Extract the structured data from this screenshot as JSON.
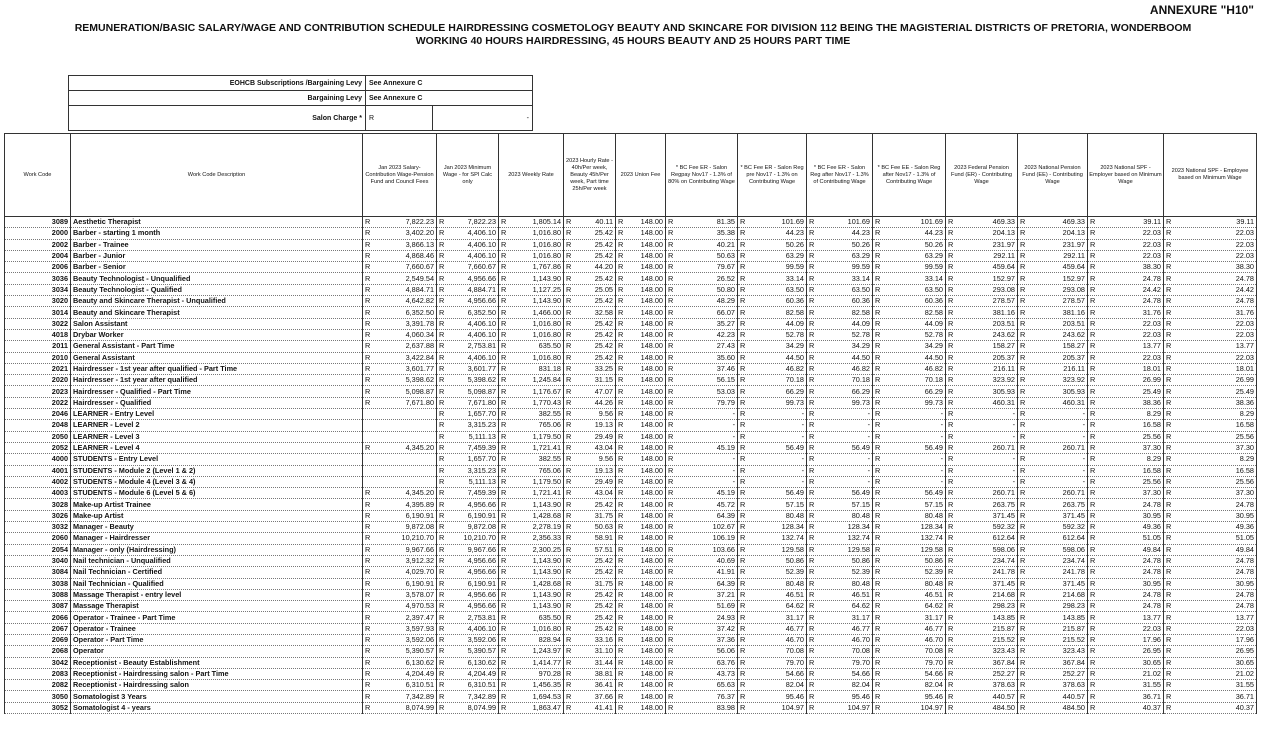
{
  "annexure": "ANNEXURE \"H10\"",
  "title": [
    "REMUNERATION/BASIC SALARY/WAGE AND CONTRIBUTION SCHEDULE HAIRDRESSING COSMETOLOGY BEAUTY AND SKINCARE FOR DIVISION 112 BEING THE MAGISTERIAL DISTRICTS OF PRETORIA, WONDERBOOM",
    "WORKING 40 HOURS HAIRDRESSING, 45 HOURS BEAUTY AND 25 HOURS PART TIME"
  ],
  "levies": [
    [
      "EOHCB Subscriptions /Bargaining Levy",
      "See Annexure C"
    ],
    [
      "Bargaining Levy",
      "See Annexure C"
    ],
    [
      "Salon Charge *",
      "R",
      "-"
    ]
  ],
  "table": {
    "currency": "R",
    "headers": [
      "Work Code",
      "Work Code Description",
      "Jan 2023 Salary-Contribution Wage-Pension Fund and Council Fees",
      "Jan 2023 Minimum Wage - for SPI Calc only",
      "2023 Weekly Rate",
      "2023 Hourly Rate - 40h/Per week, Beauty 45h/Per week, Part time 25h/Per week",
      "2023 Union Fee",
      "* BC Fee ER - Salon Regpay Nov17 - 1.3% of 80% on Contributing Wage",
      "* BC Fee ER - Salon Reg pre Nov17 - 1.3% on Contributing Wage",
      "* BC Fee ER - Salon Reg after Nov17 - 1.3% of Contributing Wage",
      "* BC Fee EE - Salon Reg after Nov17 - 1.3% of Contributing Wage",
      "2023 Federal Pension Fund (ER) - Contributing Wage",
      "2023 National Pension Fund (EE) - Contributing Wage",
      "2023 National SPF - Employer based on Minimum Wage",
      "2023 National SPF - Employee based on Minimum Wage"
    ],
    "rows": [
      [
        "3089",
        "Aesthetic Therapist",
        "7,822.23",
        "7,822.23",
        "1,805.14",
        "40.11",
        "148.00",
        "81.35",
        "101.69",
        "101.69",
        "101.69",
        "469.33",
        "469.33",
        "39.11",
        "39.11"
      ],
      [
        "2000",
        "Barber - starting 1 month",
        "3,402.20",
        "4,406.10",
        "1,016.80",
        "25.42",
        "148.00",
        "35.38",
        "44.23",
        "44.23",
        "44.23",
        "204.13",
        "204.13",
        "22.03",
        "22.03"
      ],
      [
        "2002",
        "Barber - Trainee",
        "3,866.13",
        "4,406.10",
        "1,016.80",
        "25.42",
        "148.00",
        "40.21",
        "50.26",
        "50.26",
        "50.26",
        "231.97",
        "231.97",
        "22.03",
        "22.03"
      ],
      [
        "2004",
        "Barber - Junior",
        "4,868.46",
        "4,406.10",
        "1,016.80",
        "25.42",
        "148.00",
        "50.63",
        "63.29",
        "63.29",
        "63.29",
        "292.11",
        "292.11",
        "22.03",
        "22.03"
      ],
      [
        "2006",
        "Barber - Senior",
        "7,660.67",
        "7,660.67",
        "1,767.86",
        "44.20",
        "148.00",
        "79.67",
        "99.59",
        "99.59",
        "99.59",
        "459.64",
        "459.64",
        "38.30",
        "38.30"
      ],
      [
        "3036",
        "Beauty Technologist - Unqualified",
        "2,549.54",
        "4,956.66",
        "1,143.90",
        "25.42",
        "148.00",
        "26.52",
        "33.14",
        "33.14",
        "33.14",
        "152.97",
        "152.97",
        "24.78",
        "24.78"
      ],
      [
        "3034",
        "Beauty Technologist - Qualified",
        "4,884.71",
        "4,884.71",
        "1,127.25",
        "25.05",
        "148.00",
        "50.80",
        "63.50",
        "63.50",
        "63.50",
        "293.08",
        "293.08",
        "24.42",
        "24.42"
      ],
      [
        "3020",
        "Beauty and Skincare Therapist - Unqualified",
        "4,642.82",
        "4,956.66",
        "1,143.90",
        "25.42",
        "148.00",
        "48.29",
        "60.36",
        "60.36",
        "60.36",
        "278.57",
        "278.57",
        "24.78",
        "24.78"
      ],
      [
        "3014",
        "Beauty and Skincare Therapist",
        "6,352.50",
        "6,352.50",
        "1,466.00",
        "32.58",
        "148.00",
        "66.07",
        "82.58",
        "82.58",
        "82.58",
        "381.16",
        "381.16",
        "31.76",
        "31.76"
      ],
      [
        "3022",
        "Salon Assistant",
        "3,391.78",
        "4,406.10",
        "1,016.80",
        "25.42",
        "148.00",
        "35.27",
        "44.09",
        "44.09",
        "44.09",
        "203.51",
        "203.51",
        "22.03",
        "22.03"
      ],
      [
        "4018",
        "Drybar Worker",
        "4,060.34",
        "4,406.10",
        "1,016.80",
        "25.42",
        "148.00",
        "42.23",
        "52.78",
        "52.78",
        "52.78",
        "243.62",
        "243.62",
        "22.03",
        "22.03"
      ],
      [
        "2011",
        "General Assistant - Part Time",
        "2,637.88",
        "2,753.81",
        "635.50",
        "25.42",
        "148.00",
        "27.43",
        "34.29",
        "34.29",
        "34.29",
        "158.27",
        "158.27",
        "13.77",
        "13.77"
      ],
      [
        "2010",
        "General Assistant",
        "3,422.84",
        "4,406.10",
        "1,016.80",
        "25.42",
        "148.00",
        "35.60",
        "44.50",
        "44.50",
        "44.50",
        "205.37",
        "205.37",
        "22.03",
        "22.03"
      ],
      [
        "2021",
        "Hairdresser - 1st year after qualified - Part Time",
        "3,601.77",
        "3,601.77",
        "831.18",
        "33.25",
        "148.00",
        "37.46",
        "46.82",
        "46.82",
        "46.82",
        "216.11",
        "216.11",
        "18.01",
        "18.01"
      ],
      [
        "2020",
        "Hairdresser - 1st year after qualified",
        "5,398.62",
        "5,398.62",
        "1,245.84",
        "31.15",
        "148.00",
        "56.15",
        "70.18",
        "70.18",
        "70.18",
        "323.92",
        "323.92",
        "26.99",
        "26.99"
      ],
      [
        "2023",
        "Hairdresser - Qualified - Part Time",
        "5,098.87",
        "5,098.87",
        "1,176.67",
        "47.07",
        "148.00",
        "53.03",
        "66.29",
        "66.29",
        "66.29",
        "305.93",
        "305.93",
        "25.49",
        "25.49"
      ],
      [
        "2022",
        "Hairdresser - Qualified",
        "7,671.80",
        "7,671.80",
        "1,770.43",
        "44.26",
        "148.00",
        "79.79",
        "99.73",
        "99.73",
        "99.73",
        "460.31",
        "460.31",
        "38.36",
        "38.36"
      ],
      [
        "2046",
        "LEARNER - Entry Level",
        null,
        "1,657.70",
        "382.55",
        "9.56",
        "148.00",
        "-",
        "-",
        "-",
        "-",
        "-",
        "-",
        "8.29",
        "8.29"
      ],
      [
        "2048",
        "LEARNER - Level 2",
        null,
        "3,315.23",
        "765.06",
        "19.13",
        "148.00",
        "-",
        "-",
        "-",
        "-",
        "-",
        "-",
        "16.58",
        "16.58"
      ],
      [
        "2050",
        "LEARNER - Level 3",
        null,
        "5,111.13",
        "1,179.50",
        "29.49",
        "148.00",
        "-",
        "-",
        "-",
        "-",
        "-",
        "-",
        "25.56",
        "25.56"
      ],
      [
        "2052",
        "LEARNER - Level 4",
        "4,345.20",
        "7,459.39",
        "1,721.41",
        "43.04",
        "148.00",
        "45.19",
        "56.49",
        "56.49",
        "56.49",
        "260.71",
        "260.71",
        "37.30",
        "37.30"
      ],
      [
        "4000",
        "STUDENTS - Entry Level",
        null,
        "1,657.70",
        "382.55",
        "9.56",
        "148.00",
        "-",
        "-",
        "-",
        "-",
        "-",
        "-",
        "8.29",
        "8.29"
      ],
      [
        "4001",
        "STUDENTS - Module 2 (Level 1 & 2)",
        null,
        "3,315.23",
        "765.06",
        "19.13",
        "148.00",
        "-",
        "-",
        "-",
        "-",
        "-",
        "-",
        "16.58",
        "16.58"
      ],
      [
        "4002",
        "STUDENTS - Module 4 (Level 3 & 4)",
        null,
        "5,111.13",
        "1,179.50",
        "29.49",
        "148.00",
        "-",
        "-",
        "-",
        "-",
        "-",
        "-",
        "25.56",
        "25.56"
      ],
      [
        "4003",
        "STUDENTS - Module 6 (Level 5 & 6)",
        "4,345.20",
        "7,459.39",
        "1,721.41",
        "43.04",
        "148.00",
        "45.19",
        "56.49",
        "56.49",
        "56.49",
        "260.71",
        "260.71",
        "37.30",
        "37.30"
      ],
      [
        "3028",
        "Make-up Artist Trainee",
        "4,395.89",
        "4,956.66",
        "1,143.90",
        "25.42",
        "148.00",
        "45.72",
        "57.15",
        "57.15",
        "57.15",
        "263.75",
        "263.75",
        "24.78",
        "24.78"
      ],
      [
        "3026",
        "Make-up Artist",
        "6,190.91",
        "6,190.91",
        "1,428.68",
        "31.75",
        "148.00",
        "64.39",
        "80.48",
        "80.48",
        "80.48",
        "371.45",
        "371.45",
        "30.95",
        "30.95"
      ],
      [
        "3032",
        "Manager - Beauty",
        "9,872.08",
        "9,872.08",
        "2,278.19",
        "50.63",
        "148.00",
        "102.67",
        "128.34",
        "128.34",
        "128.34",
        "592.32",
        "592.32",
        "49.36",
        "49.36"
      ],
      [
        "2060",
        "Manager - Hairdresser",
        "10,210.70",
        "10,210.70",
        "2,356.33",
        "58.91",
        "148.00",
        "106.19",
        "132.74",
        "132.74",
        "132.74",
        "612.64",
        "612.64",
        "51.05",
        "51.05"
      ],
      [
        "2054",
        "Manager - only (Hairdressing)",
        "9,967.66",
        "9,967.66",
        "2,300.25",
        "57.51",
        "148.00",
        "103.66",
        "129.58",
        "129.58",
        "129.58",
        "598.06",
        "598.06",
        "49.84",
        "49.84"
      ],
      [
        "3040",
        "Nail technician - Unqualified",
        "3,912.32",
        "4,956.66",
        "1,143.90",
        "25.42",
        "148.00",
        "40.69",
        "50.86",
        "50.86",
        "50.86",
        "234.74",
        "234.74",
        "24.78",
        "24.78"
      ],
      [
        "3084",
        "Nail Technician - Certified",
        "4,029.70",
        "4,956.66",
        "1,143.90",
        "25.42",
        "148.00",
        "41.91",
        "52.39",
        "52.39",
        "52.39",
        "241.78",
        "241.78",
        "24.78",
        "24.78"
      ],
      [
        "3038",
        "Nail Technician - Qualified",
        "6,190.91",
        "6,190.91",
        "1,428.68",
        "31.75",
        "148.00",
        "64.39",
        "80.48",
        "80.48",
        "80.48",
        "371.45",
        "371.45",
        "30.95",
        "30.95"
      ],
      [
        "3088",
        "Massage Therapist - entry level",
        "3,578.07",
        "4,956.66",
        "1,143.90",
        "25.42",
        "148.00",
        "37.21",
        "46.51",
        "46.51",
        "46.51",
        "214.68",
        "214.68",
        "24.78",
        "24.78"
      ],
      [
        "3087",
        "Massage Therapist",
        "4,970.53",
        "4,956.66",
        "1,143.90",
        "25.42",
        "148.00",
        "51.69",
        "64.62",
        "64.62",
        "64.62",
        "298.23",
        "298.23",
        "24.78",
        "24.78"
      ],
      [
        "2066",
        "Operator - Trainee - Part Time",
        "2,397.47",
        "2,753.81",
        "635.50",
        "25.42",
        "148.00",
        "24.93",
        "31.17",
        "31.17",
        "31.17",
        "143.85",
        "143.85",
        "13.77",
        "13.77"
      ],
      [
        "2067",
        "Operator - Trainee",
        "3,597.93",
        "4,406.10",
        "1,016.80",
        "25.42",
        "148.00",
        "37.42",
        "46.77",
        "46.77",
        "46.77",
        "215.87",
        "215.87",
        "22.03",
        "22.03"
      ],
      [
        "2069",
        "Operator - Part Time",
        "3,592.06",
        "3,592.06",
        "828.94",
        "33.16",
        "148.00",
        "37.36",
        "46.70",
        "46.70",
        "46.70",
        "215.52",
        "215.52",
        "17.96",
        "17.96"
      ],
      [
        "2068",
        "Operator",
        "5,390.57",
        "5,390.57",
        "1,243.97",
        "31.10",
        "148.00",
        "56.06",
        "70.08",
        "70.08",
        "70.08",
        "323.43",
        "323.43",
        "26.95",
        "26.95"
      ],
      [
        "3042",
        "Receptionist - Beauty Establishment",
        "6,130.62",
        "6,130.62",
        "1,414.77",
        "31.44",
        "148.00",
        "63.76",
        "79.70",
        "79.70",
        "79.70",
        "367.84",
        "367.84",
        "30.65",
        "30.65"
      ],
      [
        "2083",
        "Receptionist - Hairdressing salon - Part Time",
        "4,204.49",
        "4,204.49",
        "970.28",
        "38.81",
        "148.00",
        "43.73",
        "54.66",
        "54.66",
        "54.66",
        "252.27",
        "252.27",
        "21.02",
        "21.02"
      ],
      [
        "2082",
        "Receptionist - Hairdressing salon",
        "6,310.51",
        "6,310.51",
        "1,456.35",
        "36.41",
        "148.00",
        "65.63",
        "82.04",
        "82.04",
        "82.04",
        "378.63",
        "378.63",
        "31.55",
        "31.55"
      ],
      [
        "3050",
        "Somatologist 3 Years",
        "7,342.89",
        "7,342.89",
        "1,694.53",
        "37.66",
        "148.00",
        "76.37",
        "95.46",
        "95.46",
        "95.46",
        "440.57",
        "440.57",
        "36.71",
        "36.71"
      ],
      [
        "3052",
        "Somatologist 4 - years",
        "8,074.99",
        "8,074.99",
        "1,863.47",
        "41.41",
        "148.00",
        "83.98",
        "104.97",
        "104.97",
        "104.97",
        "484.50",
        "484.50",
        "40.37",
        "40.37"
      ]
    ]
  }
}
